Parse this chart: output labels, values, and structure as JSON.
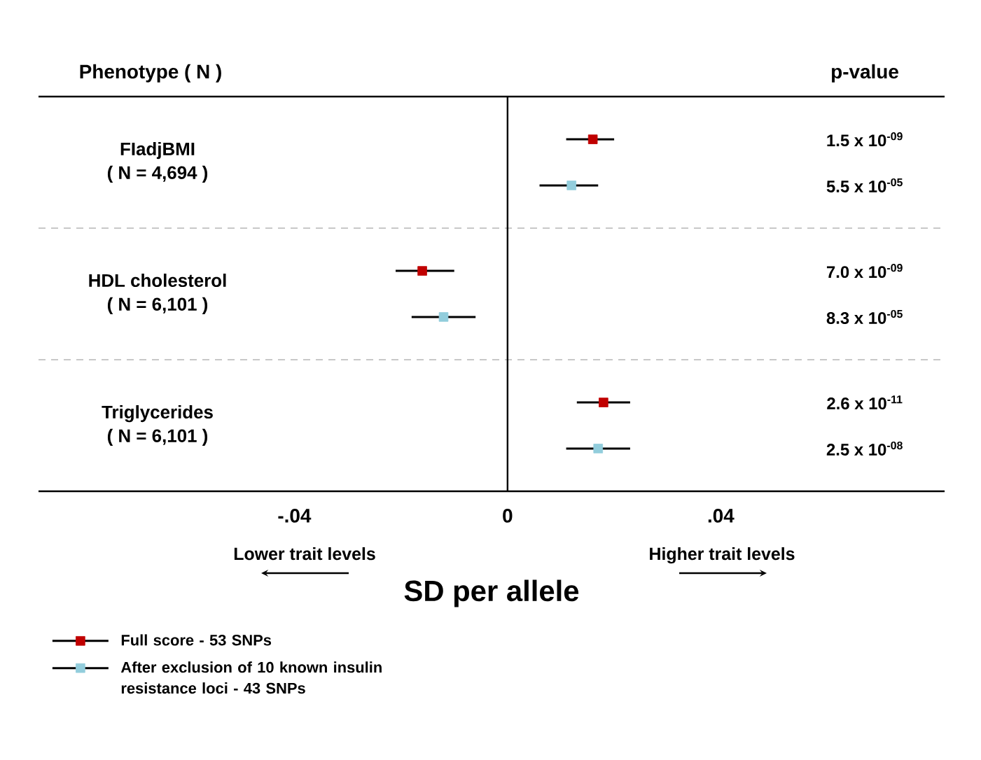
{
  "chart_data": {
    "type": "scatter",
    "orientation": "horizontal",
    "categories": [
      "FIadjBMI\n( N = 4,694 )",
      "HDL cholesterol\n( N = 6,101 )",
      "Triglycerides\n( N = 6,101 )"
    ],
    "series": [
      {
        "name": "Full score - 53 SNPs",
        "color": "#c00000",
        "values": [
          0.016,
          -0.016,
          0.018
        ],
        "errors": [
          [
            0.011,
            0.02
          ],
          [
            -0.021,
            -0.01
          ],
          [
            0.013,
            0.023
          ]
        ]
      },
      {
        "name": "After exclusion of 10 known insulin resistance loci - 43 SNPs",
        "color": "#92cddc",
        "values": [
          0.012,
          -0.012,
          0.017
        ],
        "errors": [
          [
            0.006,
            0.017
          ],
          [
            -0.018,
            -0.006
          ],
          [
            0.011,
            0.023
          ]
        ]
      }
    ],
    "xlim": [
      -0.088,
      0.082
    ],
    "xticks": [
      {
        "value": -0.04,
        "label": "-.04"
      },
      0,
      {
        "value": 0.04,
        "label": ".04"
      }
    ],
    "xlabel": "SD per allele",
    "annotations": [
      "Phenotype ( N )",
      "p-value",
      "Lower trait levels",
      "Higher trait levels",
      "1.5 x 10$^{-09}$",
      "5.5 x 10$^{-05}$",
      "7.0 x 10$^{-09}$",
      "8.3 x 10$^{-05}$",
      "2.6 x 10$^{-11}$",
      "2.5 x 10$^{-08}$"
    ],
    "ref_lines": [
      {
        "axis": "x",
        "value": 0,
        "color": "#000000"
      }
    ],
    "marker": "square",
    "legend": "bottom left"
  }
}
